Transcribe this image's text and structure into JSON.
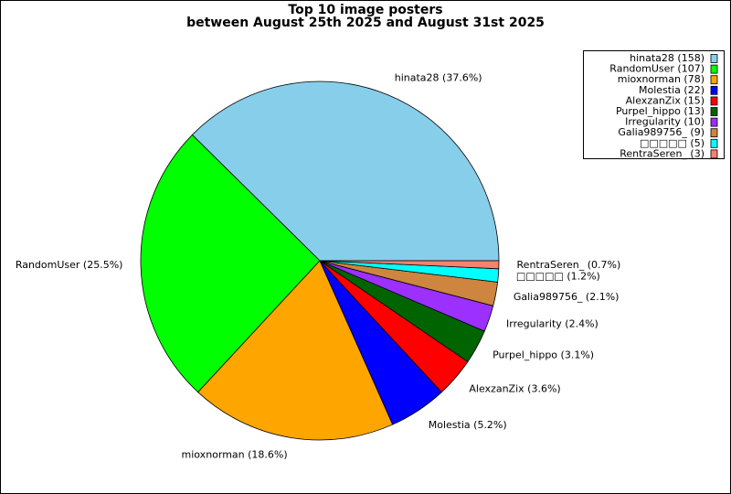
{
  "chart_data": {
    "type": "pie",
    "title": [
      "Top 10 image posters",
      "between August 25th 2025 and August 31st 2025"
    ],
    "categories": [
      "hinata28",
      "RandomUser",
      "mioxnorman",
      "Molestia",
      "AlexzanZix",
      "Purpel_hippo",
      "Irregularity",
      "Galia989756_",
      "□□□□□",
      "RentraSeren_"
    ],
    "values": [
      158,
      107,
      78,
      22,
      15,
      13,
      10,
      9,
      5,
      3
    ],
    "slice_labels": [
      "hinata28 (37.6%)",
      "RandomUser (25.5%)",
      "mioxnorman (18.6%)",
      "Molestia (5.2%)",
      "AlexzanZix (3.6%)",
      "Purpel_hippo (3.1%)",
      "Irregularity (2.4%)",
      "Galia989756_ (2.1%)",
      "□□□□□ (1.2%)",
      "RentraSeren_ (0.7%)"
    ],
    "legend_labels": [
      "hinata28 (158)",
      "RandomUser (107)",
      "mioxnorman (78)",
      "Molestia (22)",
      "AlexzanZix (15)",
      "Purpel_hippo (13)",
      "Irregularity (10)",
      "Galia989756_ (9)",
      "□□□□□ (5)",
      "RentraSeren_ (3)"
    ],
    "colors": [
      "#87ceeb",
      "#00ff00",
      "#ffa500",
      "#0000ff",
      "#ff0000",
      "#006400",
      "#9b30ff",
      "#cd853f",
      "#00ffff",
      "#fa8072"
    ],
    "legend": "upper right"
  }
}
